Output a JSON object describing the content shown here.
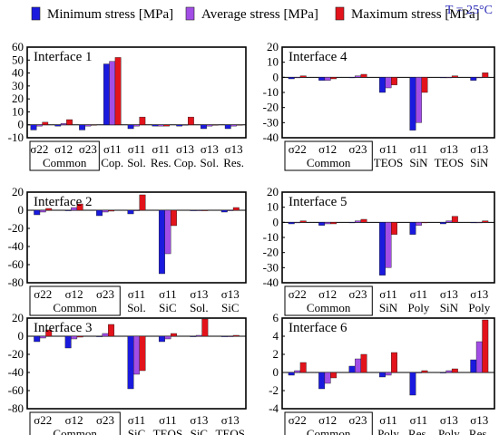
{
  "legend": [
    {
      "label": "Minimum stress [MPa]",
      "color": "#1a1adf"
    },
    {
      "label": "Average stress [MPa]",
      "color": "#a24ee6"
    },
    {
      "label": "Maximum stress [MPa]",
      "color": "#e3131b"
    }
  ],
  "temperature_label": "T = 25°C",
  "temperature_color": "#2b2bb8",
  "chart_data": [
    {
      "type": "bar",
      "title": "Interface 1",
      "ylim": [
        -10,
        60
      ],
      "yticks": [
        -10,
        0,
        10,
        20,
        30,
        40,
        50,
        60
      ],
      "categories": [
        {
          "stress": "σ22",
          "sub": "Common"
        },
        {
          "stress": "σ12",
          "sub": "Common"
        },
        {
          "stress": "σ23",
          "sub": "Common"
        },
        {
          "stress": "σ11",
          "sub": "Cop."
        },
        {
          "stress": "σ11",
          "sub": "Sol."
        },
        {
          "stress": "σ11",
          "sub": "Res."
        },
        {
          "stress": "σ13",
          "sub": "Cop."
        },
        {
          "stress": "σ13",
          "sub": "Sol."
        },
        {
          "stress": "σ13",
          "sub": "Res."
        }
      ],
      "common_label": "Common",
      "common_count": 3,
      "series": [
        {
          "name": "Minimum stress [MPa]",
          "values": [
            -4,
            -1,
            -4,
            47,
            -3,
            -1,
            -1,
            -3,
            -3
          ]
        },
        {
          "name": "Average stress [MPa]",
          "values": [
            -1,
            1,
            -1,
            49,
            -1,
            -1,
            0,
            -1,
            -1
          ]
        },
        {
          "name": "Maximum stress [MPa]",
          "values": [
            2,
            4,
            0,
            52,
            6,
            -1,
            6,
            0,
            0
          ]
        }
      ]
    },
    {
      "type": "bar",
      "title": "Interface 4",
      "ylim": [
        -40,
        20
      ],
      "yticks": [
        -40,
        -30,
        -20,
        -10,
        0,
        10,
        20
      ],
      "categories": [
        {
          "stress": "σ22",
          "sub": "Common"
        },
        {
          "stress": "σ12",
          "sub": "Common"
        },
        {
          "stress": "σ23",
          "sub": "Common"
        },
        {
          "stress": "σ11",
          "sub": "TEOS"
        },
        {
          "stress": "σ11",
          "sub": "SiN"
        },
        {
          "stress": "σ13",
          "sub": "TEOS"
        },
        {
          "stress": "σ13",
          "sub": "SiN"
        }
      ],
      "common_label": "Common",
      "common_count": 3,
      "series": [
        {
          "name": "Minimum stress [MPa]",
          "values": [
            -1,
            -2,
            0,
            -10,
            -35,
            0,
            -2
          ]
        },
        {
          "name": "Average stress [MPa]",
          "values": [
            0,
            -2,
            1,
            -7,
            -30,
            0,
            0
          ]
        },
        {
          "name": "Maximum stress [MPa]",
          "values": [
            1,
            -1,
            2,
            -5,
            -10,
            1,
            3
          ]
        }
      ]
    },
    {
      "type": "bar",
      "title": "Interface 2",
      "ylim": [
        -80,
        20
      ],
      "yticks": [
        -80,
        -60,
        -40,
        -20,
        0,
        20
      ],
      "categories": [
        {
          "stress": "σ22",
          "sub": "Common"
        },
        {
          "stress": "σ12",
          "sub": "Common"
        },
        {
          "stress": "σ23",
          "sub": "Common"
        },
        {
          "stress": "σ11",
          "sub": "Sol."
        },
        {
          "stress": "σ11",
          "sub": "SiC"
        },
        {
          "stress": "σ13",
          "sub": "Sol."
        },
        {
          "stress": "σ13",
          "sub": "SiC"
        }
      ],
      "common_label": "Common",
      "common_count": 3,
      "series": [
        {
          "name": "Minimum stress [MPa]",
          "values": [
            -5,
            0,
            -6,
            -4,
            -70,
            0,
            -2
          ]
        },
        {
          "name": "Average stress [MPa]",
          "values": [
            -2,
            3,
            -2,
            0,
            -48,
            0,
            0
          ]
        },
        {
          "name": "Maximum stress [MPa]",
          "values": [
            2,
            7,
            -1,
            17,
            -17,
            0,
            3
          ]
        }
      ]
    },
    {
      "type": "bar",
      "title": "Interface 5",
      "ylim": [
        -40,
        20
      ],
      "yticks": [
        -40,
        -30,
        -20,
        -10,
        0,
        10,
        20
      ],
      "categories": [
        {
          "stress": "σ22",
          "sub": "Common"
        },
        {
          "stress": "σ12",
          "sub": "Common"
        },
        {
          "stress": "σ23",
          "sub": "Common"
        },
        {
          "stress": "σ11",
          "sub": "SiN"
        },
        {
          "stress": "σ11",
          "sub": "Poly"
        },
        {
          "stress": "σ13",
          "sub": "SiN"
        },
        {
          "stress": "σ13",
          "sub": "Poly"
        }
      ],
      "common_label": "Common",
      "common_count": 3,
      "series": [
        {
          "name": "Minimum stress [MPa]",
          "values": [
            -1,
            -2,
            0,
            -35,
            -8,
            -1,
            0
          ]
        },
        {
          "name": "Average stress [MPa]",
          "values": [
            0,
            -1,
            1,
            -30,
            -2,
            1,
            0
          ]
        },
        {
          "name": "Maximum stress [MPa]",
          "values": [
            1,
            -1,
            2,
            -8,
            0,
            4,
            1
          ]
        }
      ]
    },
    {
      "type": "bar",
      "title": "Interface 3",
      "ylim": [
        -80,
        20
      ],
      "yticks": [
        -80,
        -60,
        -40,
        -20,
        0,
        20
      ],
      "categories": [
        {
          "stress": "σ22",
          "sub": "Common"
        },
        {
          "stress": "σ12",
          "sub": "Common"
        },
        {
          "stress": "σ23",
          "sub": "Common"
        },
        {
          "stress": "σ11",
          "sub": "SiC"
        },
        {
          "stress": "σ11",
          "sub": "TEOS"
        },
        {
          "stress": "σ13",
          "sub": "SiC"
        },
        {
          "stress": "σ13",
          "sub": "TEOS"
        }
      ],
      "common_label": "Common",
      "common_count": 3,
      "series": [
        {
          "name": "Minimum stress [MPa]",
          "values": [
            -6,
            -13,
            0,
            -58,
            -6,
            0,
            0
          ]
        },
        {
          "name": "Average stress [MPa]",
          "values": [
            -2,
            -3,
            3,
            -42,
            -3,
            1,
            0
          ]
        },
        {
          "name": "Maximum stress [MPa]",
          "values": [
            7,
            -1,
            13,
            -38,
            3,
            19,
            1
          ]
        }
      ]
    },
    {
      "type": "bar",
      "title": "Interface 6",
      "ylim": [
        -4,
        6
      ],
      "yticks": [
        -4,
        -2,
        0,
        2,
        4,
        6
      ],
      "categories": [
        {
          "stress": "σ22",
          "sub": "Common"
        },
        {
          "stress": "σ12",
          "sub": "Common"
        },
        {
          "stress": "σ23",
          "sub": "Common"
        },
        {
          "stress": "σ11",
          "sub": "Poly"
        },
        {
          "stress": "σ11",
          "sub": "Res."
        },
        {
          "stress": "σ13",
          "sub": "Poly"
        },
        {
          "stress": "σ13",
          "sub": "Res."
        }
      ],
      "common_label": "Common",
      "common_count": 3,
      "series": [
        {
          "name": "Minimum stress [MPa]",
          "values": [
            -0.3,
            -1.8,
            0.7,
            -0.5,
            -2.5,
            0,
            1.4
          ]
        },
        {
          "name": "Average stress [MPa]",
          "values": [
            0.2,
            -1.2,
            1.5,
            -0.3,
            0,
            0.2,
            3.4
          ]
        },
        {
          "name": "Maximum stress [MPa]",
          "values": [
            1.1,
            -0.6,
            2.0,
            2.2,
            0.2,
            0.4,
            5.8
          ]
        }
      ]
    }
  ]
}
